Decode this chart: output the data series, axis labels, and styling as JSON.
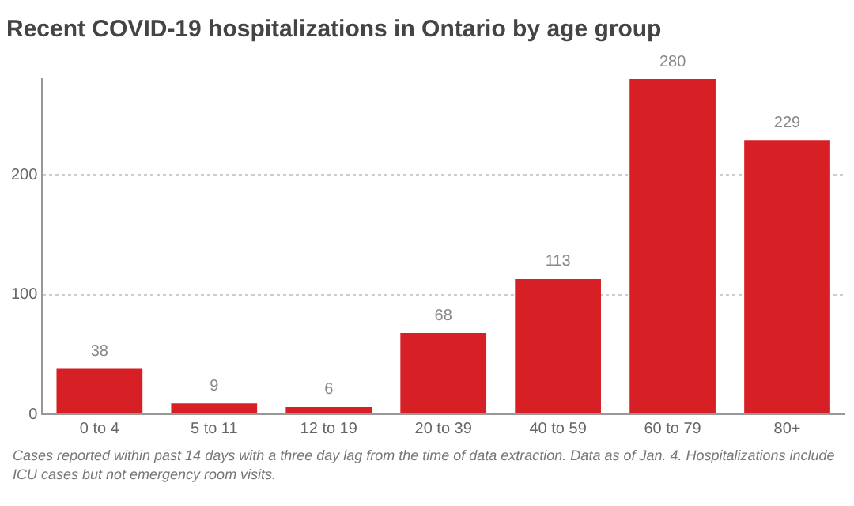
{
  "chart_data": {
    "type": "bar",
    "title": "Recent COVID-19 hospitalizations in Ontario by age group",
    "categories": [
      "0 to 4",
      "5 to 11",
      "12 to 19",
      "20 to 39",
      "40 to 59",
      "60 to 79",
      "80+"
    ],
    "values": [
      38,
      9,
      6,
      68,
      113,
      280,
      229
    ],
    "color": "#d71f26",
    "ylim": [
      0,
      280
    ],
    "yticks": [
      0,
      100,
      200
    ],
    "grid": "y",
    "data_labels": true,
    "annotations": [
      "Cases reported within past 14 days with a three day lag from the time of data extraction. Data as of Jan. 4. Hospitalizations include ICU cases but not emergency room visits."
    ]
  }
}
